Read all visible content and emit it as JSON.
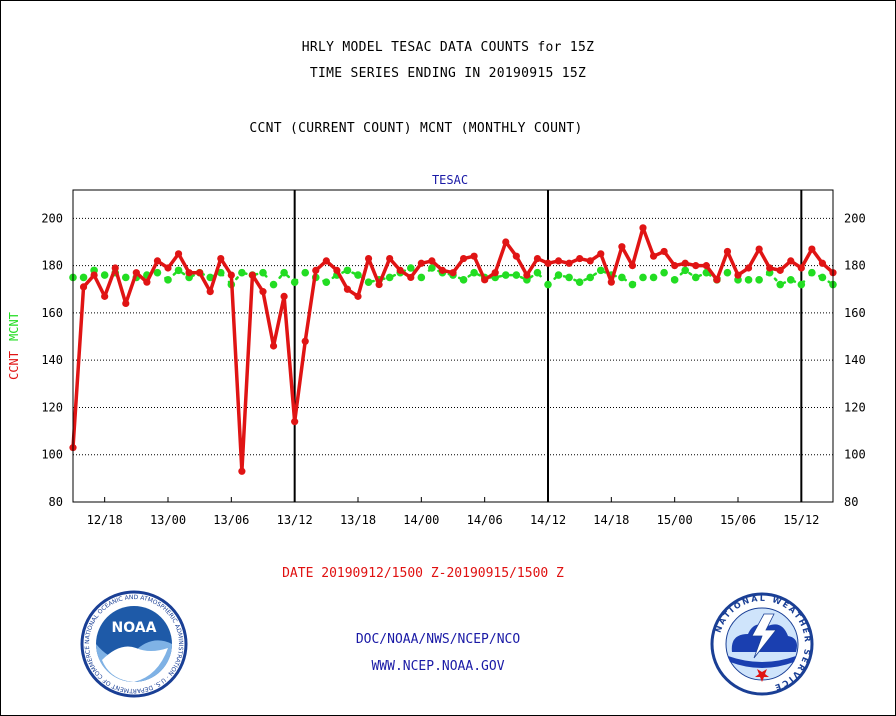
{
  "title_lines": [
    "HRLY MODEL TESAC DATA COUNTS for 15Z",
    "TIME SERIES ENDING IN 20190915 15Z",
    "CCNT (CURRENT COUNT) MCNT (MONTHLY COUNT)"
  ],
  "date_range": "DATE 20190912/1500 Z-20190915/1500 Z",
  "credits": [
    "DOC/NOAA/NWS/NCEP/NCO",
    "WWW.NCEP.NOAA.GOV"
  ],
  "logos": {
    "noaa": {
      "text": "NOAA",
      "ring_text": "NATIONAL OCEANIC AND ATMOSPHERIC ADMINISTRATION · U.S. DEPARTMENT OF COMMERCE"
    },
    "nws": {
      "ring_text": "NATIONAL WEATHER SERVICE"
    }
  },
  "colors": {
    "ccnt": "#e01414",
    "mcnt": "#22dd22",
    "plot_title": "#1a1aa6",
    "axis": "#000000"
  },
  "chart_data": {
    "type": "line",
    "title": "TESAC",
    "ylabel_parts": [
      {
        "text": "CCNT",
        "color": "#e01414"
      },
      {
        "text": "MCNT",
        "color": "#22dd22"
      }
    ],
    "ylim": [
      80,
      212
    ],
    "yticks": [
      80,
      100,
      120,
      140,
      160,
      180,
      200
    ],
    "grid": "horizontal dotted",
    "xlim_hours": [
      0,
      72
    ],
    "x_ticks": [
      {
        "label": "12/18",
        "hour": 3
      },
      {
        "label": "13/00",
        "hour": 9
      },
      {
        "label": "13/06",
        "hour": 15
      },
      {
        "label": "13/12",
        "hour": 21
      },
      {
        "label": "13/18",
        "hour": 27
      },
      {
        "label": "14/00",
        "hour": 33
      },
      {
        "label": "14/06",
        "hour": 39
      },
      {
        "label": "14/12",
        "hour": 45
      },
      {
        "label": "14/18",
        "hour": 51
      },
      {
        "label": "15/00",
        "hour": 57
      },
      {
        "label": "15/06",
        "hour": 63
      },
      {
        "label": "15/12",
        "hour": 69
      }
    ],
    "day_boundaries_hours": [
      21,
      45,
      69
    ],
    "series": [
      {
        "name": "CCNT",
        "color": "#e01414",
        "values": [
          103,
          171,
          176,
          167,
          179,
          164,
          177,
          173,
          182,
          179,
          185,
          177,
          177,
          169,
          183,
          176,
          93,
          176,
          169,
          146,
          167,
          114,
          148,
          178,
          182,
          178,
          170,
          167,
          183,
          172,
          183,
          178,
          175,
          181,
          182,
          178,
          177,
          183,
          184,
          174,
          177,
          190,
          184,
          176,
          183,
          181,
          182,
          181,
          183,
          182,
          185,
          173,
          188,
          180,
          196,
          184,
          186,
          180,
          181,
          180,
          180,
          174,
          186,
          176,
          179,
          187,
          179,
          178,
          182,
          179,
          187,
          181,
          177
        ]
      },
      {
        "name": "MCNT",
        "color": "#22dd22",
        "values": [
          175,
          175,
          178,
          176,
          177,
          175,
          175,
          176,
          177,
          174,
          178,
          175,
          177,
          175,
          177,
          172,
          177,
          176,
          177,
          172,
          177,
          173,
          177,
          175,
          173,
          176,
          178,
          176,
          173,
          174,
          175,
          177,
          179,
          175,
          179,
          177,
          176,
          174,
          177,
          175,
          175,
          176,
          176,
          174,
          177,
          172,
          176,
          175,
          173,
          175,
          178,
          176,
          175,
          172,
          175,
          175,
          177,
          174,
          178,
          175,
          177,
          174,
          177,
          174,
          174,
          174,
          177,
          172,
          174,
          172,
          177,
          175,
          172
        ]
      }
    ]
  }
}
